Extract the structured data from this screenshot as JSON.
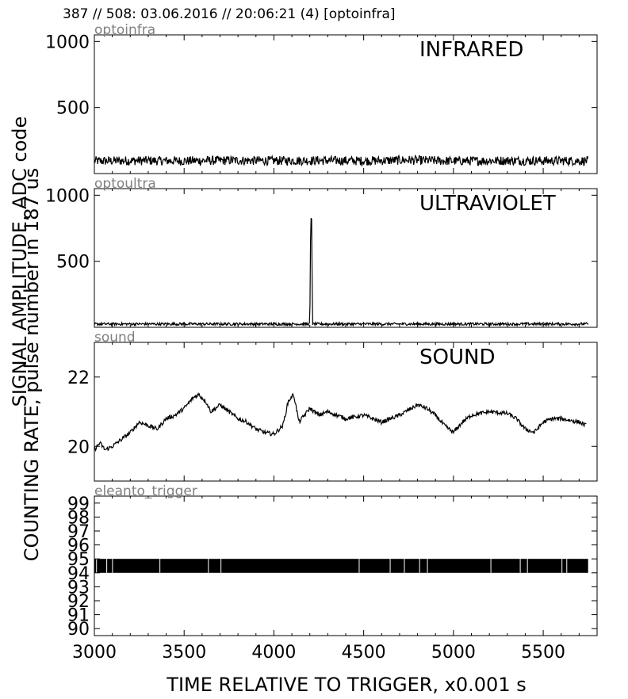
{
  "header": {
    "title": "387 // 508:   03.06.2016 // 20:06:21 (4)  [optoinfra]"
  },
  "axes": {
    "xlabel": "TIME RELATIVE TO TRIGGER,   x0.001 s",
    "ylabel_line1": "SIGNAL AMPLITUDE,  ADC code",
    "ylabel_line2": "COUNTING RATE,   pulse number in 187 us",
    "xlim": [
      3000,
      5800
    ],
    "xticks": [
      3000,
      3500,
      4000,
      4500,
      5000,
      5500
    ]
  },
  "colors": {
    "line": "#000000",
    "panel_tag": "#808080"
  },
  "chart_data": [
    {
      "type": "line",
      "panel_tag": "optoinfra",
      "title": "INFRARED",
      "ylim": [
        0,
        1050
      ],
      "yticks": [
        500,
        1000
      ],
      "series": [
        {
          "x": [
            3000,
            3250,
            3500,
            3750,
            4000,
            4250,
            4500,
            4750,
            5000,
            5250,
            5500,
            5750
          ],
          "y": [
            95,
            98,
            96,
            100,
            97,
            99,
            96,
            102,
            95,
            98,
            97,
            96
          ],
          "noise": 35
        }
      ]
    },
    {
      "type": "line",
      "panel_tag": "optoultra",
      "title": "ULTRAVIOLET",
      "ylim": [
        0,
        1050
      ],
      "yticks": [
        500,
        1000
      ],
      "series": [
        {
          "x": [
            3000,
            3500,
            4000,
            4200,
            4205,
            4210,
            4215,
            4500,
            5000,
            5500,
            5750
          ],
          "y": [
            25,
            25,
            25,
            25,
            820,
            820,
            25,
            25,
            25,
            25,
            25
          ],
          "noise": 10
        }
      ]
    },
    {
      "type": "line",
      "panel_tag": "sound",
      "title": "SOUND",
      "ylim": [
        19.0,
        23.0
      ],
      "yticks": [
        20,
        22
      ],
      "series": [
        {
          "x": [
            3000,
            3030,
            3060,
            3100,
            3150,
            3200,
            3250,
            3300,
            3350,
            3400,
            3450,
            3500,
            3550,
            3580,
            3620,
            3650,
            3700,
            3750,
            3800,
            3850,
            3900,
            3950,
            4000,
            4050,
            4080,
            4110,
            4140,
            4200,
            4250,
            4300,
            4400,
            4500,
            4600,
            4700,
            4800,
            4850,
            4900,
            4950,
            5000,
            5050,
            5100,
            5200,
            5300,
            5350,
            5400,
            5450,
            5500,
            5550,
            5600,
            5650,
            5700,
            5740
          ],
          "y": [
            19.9,
            20.1,
            19.9,
            20.0,
            20.2,
            20.4,
            20.7,
            20.6,
            20.5,
            20.8,
            20.9,
            21.1,
            21.4,
            21.5,
            21.3,
            21.0,
            21.2,
            21.0,
            20.8,
            20.7,
            20.5,
            20.4,
            20.35,
            20.6,
            21.3,
            21.5,
            20.7,
            21.1,
            20.9,
            21.0,
            20.8,
            20.9,
            20.7,
            20.9,
            21.2,
            21.1,
            20.9,
            20.6,
            20.4,
            20.7,
            20.9,
            21.0,
            20.95,
            20.8,
            20.5,
            20.4,
            20.7,
            20.8,
            20.8,
            20.75,
            20.7,
            20.6
          ],
          "noise": 0.06
        }
      ]
    },
    {
      "type": "line",
      "panel_tag": "eleanto_trigger",
      "title": "",
      "ylim": [
        89.5,
        99.5
      ],
      "yticks": [
        90,
        91,
        92,
        93,
        94,
        95,
        96,
        97,
        98,
        99
      ],
      "series": [
        {
          "x": [
            3000,
            5750
          ],
          "band": [
            94,
            95
          ]
        }
      ]
    }
  ]
}
